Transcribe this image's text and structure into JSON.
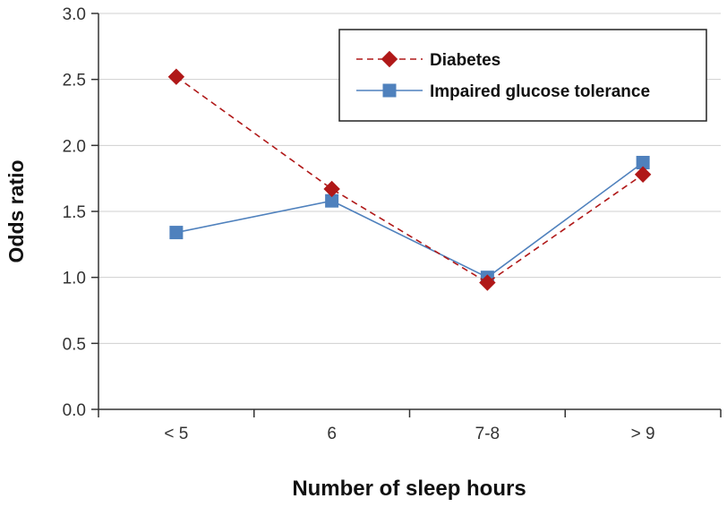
{
  "chart_data": {
    "type": "line",
    "title": "",
    "xlabel": "Number of sleep hours",
    "ylabel": "Odds ratio",
    "categories": [
      "< 5",
      "6",
      "7-8",
      "> 9"
    ],
    "ylim": [
      0,
      3
    ],
    "yticks": [
      "0.0",
      "0.5",
      "1.0",
      "1.5",
      "2.0",
      "2.5",
      "3.0"
    ],
    "grid": "horizontal",
    "legend_position": "top-right",
    "series": [
      {
        "name": "Diabetes",
        "values": [
          2.52,
          1.67,
          0.96,
          1.78
        ],
        "color": "#b01818",
        "line_style": "dashed",
        "marker": "diamond"
      },
      {
        "name": "Impaired glucose tolerance",
        "values": [
          1.34,
          1.58,
          1.0,
          1.87
        ],
        "color": "#4f81bd",
        "line_style": "solid",
        "marker": "square"
      }
    ]
  }
}
